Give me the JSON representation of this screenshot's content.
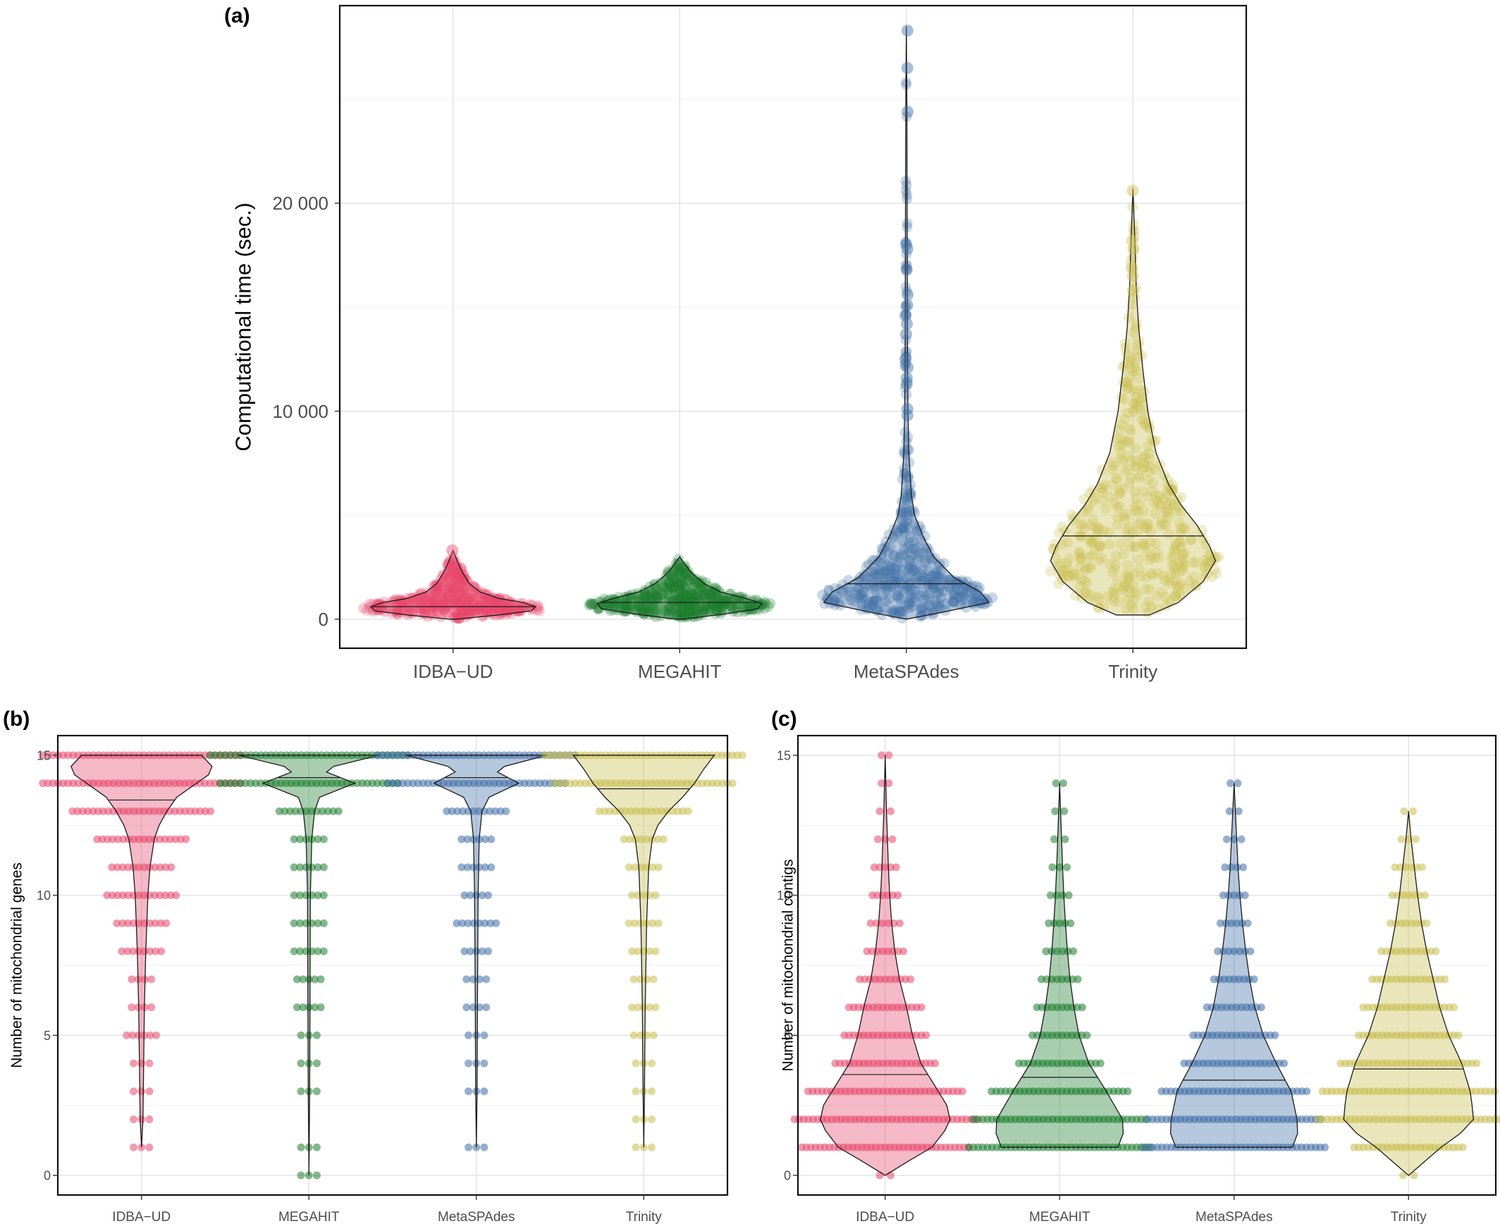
{
  "chart_data": [
    {
      "panel_label": "(a)",
      "type": "violin",
      "xlabel": "",
      "ylabel": "Computational time (sec.)",
      "categories": [
        "IDBA−UD",
        "MEGAHIT",
        "MetaSPAdes",
        "Trinity"
      ],
      "y_ticks": [
        0,
        10000,
        20000
      ],
      "y_tick_labels": [
        "0",
        "10 000",
        "20 000"
      ],
      "ylim": [
        -1400,
        29500
      ],
      "grid": true,
      "series": [
        {
          "category": "IDBA−UD",
          "color": "#E8476B",
          "min": 0,
          "max": 3300,
          "median": 600,
          "profile": [
            [
              0,
              0.05
            ],
            [
              200,
              0.55
            ],
            [
              400,
              0.95
            ],
            [
              600,
              1.0
            ],
            [
              800,
              0.85
            ],
            [
              1000,
              0.55
            ],
            [
              1300,
              0.33
            ],
            [
              1700,
              0.2
            ],
            [
              2200,
              0.12
            ],
            [
              2700,
              0.06
            ],
            [
              3300,
              0.0
            ]
          ]
        },
        {
          "category": "MEGAHIT",
          "color": "#1E7D2E",
          "min": 0,
          "max": 3000,
          "median": 800,
          "profile": [
            [
              0,
              0.05
            ],
            [
              250,
              0.55
            ],
            [
              500,
              0.95
            ],
            [
              750,
              1.0
            ],
            [
              1000,
              0.8
            ],
            [
              1300,
              0.5
            ],
            [
              1700,
              0.3
            ],
            [
              2200,
              0.15
            ],
            [
              2600,
              0.07
            ],
            [
              3000,
              0.0
            ]
          ]
        },
        {
          "category": "MetaSPAdes",
          "color": "#3F6EA5",
          "min": 0,
          "max": 28500,
          "median": 1700,
          "profile": [
            [
              0,
              0.0
            ],
            [
              300,
              0.4
            ],
            [
              800,
              1.0
            ],
            [
              1300,
              0.9
            ],
            [
              2000,
              0.58
            ],
            [
              3000,
              0.33
            ],
            [
              4000,
              0.2
            ],
            [
              5000,
              0.1
            ],
            [
              6000,
              0.06
            ],
            [
              8000,
              0.03
            ],
            [
              10000,
              0.02
            ],
            [
              12000,
              0.015
            ],
            [
              16000,
              0.012
            ],
            [
              20000,
              0.01
            ],
            [
              25000,
              0.006
            ],
            [
              28500,
              0.0
            ]
          ]
        },
        {
          "category": "Trinity",
          "color": "#C9BD4F",
          "min": 200,
          "max": 20700,
          "median": 4000,
          "profile": [
            [
              200,
              0.2
            ],
            [
              800,
              0.55
            ],
            [
              1800,
              0.85
            ],
            [
              2800,
              1.0
            ],
            [
              3500,
              0.93
            ],
            [
              4500,
              0.78
            ],
            [
              5500,
              0.58
            ],
            [
              6500,
              0.43
            ],
            [
              8000,
              0.28
            ],
            [
              10000,
              0.18
            ],
            [
              12000,
              0.12
            ],
            [
              14000,
              0.07
            ],
            [
              16000,
              0.04
            ],
            [
              18000,
              0.025
            ],
            [
              20700,
              0.0
            ]
          ]
        }
      ],
      "outliers": [
        {
          "category": "MetaSPAdes",
          "values": [
            28300,
            26500,
            24400,
            18000,
            17800,
            16800,
            15600,
            15100,
            14600,
            14200,
            13700,
            12500,
            12100,
            11600,
            11300,
            10100,
            9800
          ]
        },
        {
          "category": "Trinity",
          "values": [
            20600,
            18200,
            17800,
            16900,
            16500,
            15800
          ]
        },
        {
          "category": "IDBA−UD",
          "values": [
            3300
          ]
        }
      ]
    },
    {
      "panel_label": "(b)",
      "type": "violin",
      "xlabel": "",
      "ylabel": "Number of mitochondrial genes",
      "categories": [
        "IDBA−UD",
        "MEGAHIT",
        "MetaSPAdes",
        "Trinity"
      ],
      "y_ticks": [
        0,
        5,
        10,
        15
      ],
      "y_tick_labels": [
        "0",
        "5",
        "10",
        "15"
      ],
      "ylim": [
        -0.7,
        15.7
      ],
      "grid": true,
      "series": [
        {
          "category": "IDBA−UD",
          "color": "#E8476B",
          "min": 1,
          "max": 15,
          "median": 13.4,
          "values": [
            1,
            2,
            3,
            4,
            5,
            6,
            7,
            8,
            9,
            10,
            11,
            12,
            13,
            14,
            15
          ],
          "counts": [
            0.08,
            0.08,
            0.08,
            0.08,
            0.15,
            0.1,
            0.1,
            0.2,
            0.25,
            0.35,
            0.3,
            0.45,
            0.7,
            1.0,
            1.0
          ],
          "profile": [
            [
              1,
              0.0
            ],
            [
              2,
              0.02
            ],
            [
              4,
              0.03
            ],
            [
              6,
              0.04
            ],
            [
              8,
              0.06
            ],
            [
              10,
              0.09
            ],
            [
              11,
              0.12
            ],
            [
              12,
              0.18
            ],
            [
              12.5,
              0.25
            ],
            [
              13,
              0.36
            ],
            [
              13.5,
              0.5
            ],
            [
              14,
              0.78
            ],
            [
              14.3,
              0.95
            ],
            [
              14.6,
              1.0
            ],
            [
              15,
              0.85
            ]
          ]
        },
        {
          "category": "MEGAHIT",
          "color": "#1E7D2E",
          "min": 0,
          "max": 15,
          "median": 14.2,
          "values": [
            0,
            1,
            3,
            4,
            5,
            6,
            7,
            8,
            9,
            10,
            11,
            12,
            13,
            14,
            15
          ],
          "counts": [
            0.08,
            0.08,
            0.08,
            0.08,
            0.08,
            0.12,
            0.12,
            0.15,
            0.15,
            0.15,
            0.15,
            0.15,
            0.3,
            0.9,
            1.0
          ],
          "profile": [
            [
              0,
              0.0
            ],
            [
              3,
              0.01
            ],
            [
              6,
              0.015
            ],
            [
              10,
              0.02
            ],
            [
              12,
              0.04
            ],
            [
              13,
              0.08
            ],
            [
              13.5,
              0.15
            ],
            [
              14,
              0.65
            ],
            [
              14.4,
              0.25
            ],
            [
              14.6,
              0.35
            ],
            [
              15,
              1.0
            ]
          ]
        },
        {
          "category": "MetaSPAdes",
          "color": "#3F6EA5",
          "min": 1,
          "max": 15,
          "median": 14.2,
          "values": [
            1,
            3,
            4,
            5,
            6,
            7,
            8,
            9,
            10,
            11,
            12,
            13,
            14,
            15
          ],
          "counts": [
            0.08,
            0.08,
            0.08,
            0.08,
            0.1,
            0.1,
            0.12,
            0.2,
            0.12,
            0.15,
            0.15,
            0.3,
            0.9,
            1.0
          ],
          "profile": [
            [
              1,
              0.0
            ],
            [
              3,
              0.01
            ],
            [
              6,
              0.015
            ],
            [
              10,
              0.025
            ],
            [
              12,
              0.04
            ],
            [
              13,
              0.08
            ],
            [
              13.5,
              0.18
            ],
            [
              14,
              0.6
            ],
            [
              14.4,
              0.3
            ],
            [
              14.6,
              0.4
            ],
            [
              15,
              1.0
            ]
          ]
        },
        {
          "category": "Trinity",
          "color": "#C9BD4F",
          "min": 1,
          "max": 15,
          "median": 13.8,
          "values": [
            1,
            2,
            3,
            4,
            5,
            6,
            7,
            8,
            9,
            10,
            11,
            12,
            13,
            14,
            15
          ],
          "counts": [
            0.08,
            0.08,
            0.08,
            0.08,
            0.1,
            0.12,
            0.1,
            0.12,
            0.15,
            0.12,
            0.15,
            0.2,
            0.45,
            0.9,
            1.0
          ],
          "profile": [
            [
              1,
              0.0
            ],
            [
              3,
              0.01
            ],
            [
              6,
              0.02
            ],
            [
              9,
              0.04
            ],
            [
              11,
              0.07
            ],
            [
              12,
              0.12
            ],
            [
              12.5,
              0.2
            ],
            [
              13,
              0.35
            ],
            [
              13.5,
              0.55
            ],
            [
              14,
              0.72
            ],
            [
              14.5,
              0.85
            ],
            [
              15,
              1.0
            ]
          ]
        }
      ]
    },
    {
      "panel_label": "(c)",
      "type": "violin",
      "xlabel": "",
      "ylabel": "Number of mitochondrial contigs",
      "categories": [
        "IDBA−UD",
        "MEGAHIT",
        "MetaSPAdes",
        "Trinity"
      ],
      "y_ticks": [
        0,
        5,
        10,
        15
      ],
      "y_tick_labels": [
        "0",
        "5",
        "10",
        "15"
      ],
      "ylim": [
        -0.7,
        15.7
      ],
      "grid": true,
      "series": [
        {
          "category": "IDBA−UD",
          "color": "#E8476B",
          "min": 0,
          "max": 15,
          "median": 3.6,
          "values": [
            0,
            1,
            2,
            3,
            4,
            5,
            6,
            7,
            8,
            9,
            10,
            11,
            12,
            13,
            14,
            15
          ],
          "counts": [
            0.06,
            0.92,
            1.0,
            0.85,
            0.55,
            0.45,
            0.4,
            0.28,
            0.2,
            0.16,
            0.14,
            0.12,
            0.08,
            0.06,
            0.04,
            0.04
          ],
          "profile": [
            [
              0,
              0.0
            ],
            [
              0.5,
              0.35
            ],
            [
              1,
              0.72
            ],
            [
              1.6,
              0.92
            ],
            [
              2,
              1.0
            ],
            [
              2.5,
              0.95
            ],
            [
              3,
              0.82
            ],
            [
              4,
              0.55
            ],
            [
              5,
              0.42
            ],
            [
              6,
              0.33
            ],
            [
              7,
              0.22
            ],
            [
              8,
              0.15
            ],
            [
              9,
              0.1
            ],
            [
              10,
              0.07
            ],
            [
              11,
              0.05
            ],
            [
              12,
              0.035
            ],
            [
              13,
              0.02
            ],
            [
              14,
              0.01
            ],
            [
              15,
              0.0
            ]
          ]
        },
        {
          "category": "MEGAHIT",
          "color": "#1E7D2E",
          "min": 1,
          "max": 14,
          "median": 3.5,
          "values": [
            1,
            2,
            3,
            4,
            5,
            6,
            7,
            8,
            9,
            10,
            11,
            12,
            13,
            14
          ],
          "counts": [
            1.0,
            0.95,
            0.75,
            0.45,
            0.3,
            0.25,
            0.2,
            0.15,
            0.12,
            0.1,
            0.08,
            0.06,
            0.05,
            0.04
          ],
          "profile": [
            [
              1,
              0.9
            ],
            [
              1.5,
              0.98
            ],
            [
              2,
              0.97
            ],
            [
              3,
              0.72
            ],
            [
              4,
              0.45
            ],
            [
              5,
              0.3
            ],
            [
              6,
              0.22
            ],
            [
              7,
              0.16
            ],
            [
              8,
              0.12
            ],
            [
              9,
              0.09
            ],
            [
              10,
              0.065
            ],
            [
              11,
              0.045
            ],
            [
              12,
              0.03
            ],
            [
              13,
              0.015
            ],
            [
              14,
              0.0
            ]
          ]
        },
        {
          "category": "MetaSPAdes",
          "color": "#3F6EA5",
          "min": 1,
          "max": 14,
          "median": 3.4,
          "values": [
            1,
            2,
            3,
            4,
            5,
            6,
            7,
            8,
            9,
            10,
            11,
            12,
            13,
            14
          ],
          "counts": [
            1.0,
            0.95,
            0.8,
            0.55,
            0.45,
            0.3,
            0.22,
            0.18,
            0.15,
            0.12,
            0.1,
            0.08,
            0.05,
            0.04
          ],
          "profile": [
            [
              1,
              0.9
            ],
            [
              1.5,
              0.98
            ],
            [
              2,
              0.97
            ],
            [
              3,
              0.88
            ],
            [
              4,
              0.65
            ],
            [
              5,
              0.45
            ],
            [
              6,
              0.32
            ],
            [
              7,
              0.24
            ],
            [
              8,
              0.18
            ],
            [
              9,
              0.13
            ],
            [
              10,
              0.09
            ],
            [
              11,
              0.06
            ],
            [
              12,
              0.04
            ],
            [
              13,
              0.02
            ],
            [
              14,
              0.0
            ]
          ]
        },
        {
          "category": "Trinity",
          "color": "#C9BD4F",
          "min": 0,
          "max": 13,
          "median": 3.8,
          "values": [
            0,
            1,
            2,
            3,
            4,
            5,
            6,
            7,
            8,
            9,
            10,
            11,
            12,
            13
          ],
          "counts": [
            0.06,
            0.6,
            1.0,
            0.95,
            0.75,
            0.55,
            0.5,
            0.4,
            0.3,
            0.2,
            0.18,
            0.15,
            0.08,
            0.05
          ],
          "profile": [
            [
              0,
              0.0
            ],
            [
              0.5,
              0.25
            ],
            [
              1,
              0.5
            ],
            [
              1.5,
              0.8
            ],
            [
              2,
              1.0
            ],
            [
              2.5,
              0.98
            ],
            [
              3,
              0.95
            ],
            [
              4,
              0.82
            ],
            [
              5,
              0.62
            ],
            [
              6,
              0.48
            ],
            [
              7,
              0.38
            ],
            [
              8,
              0.28
            ],
            [
              9,
              0.2
            ],
            [
              10,
              0.14
            ],
            [
              11,
              0.09
            ],
            [
              12,
              0.04
            ],
            [
              13,
              0.0
            ]
          ]
        }
      ]
    }
  ]
}
